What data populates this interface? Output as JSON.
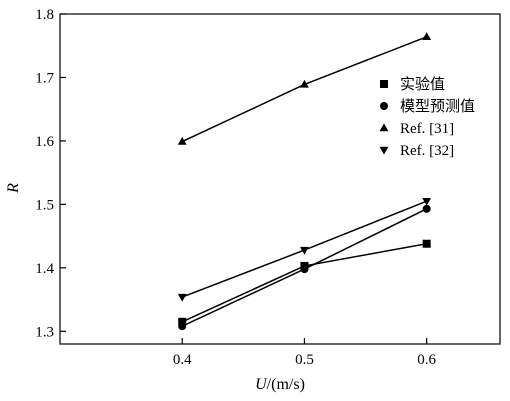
{
  "chart_data": {
    "type": "line",
    "x": [
      0.4,
      0.5,
      0.6
    ],
    "xlim": [
      0.3,
      0.66
    ],
    "ylim": [
      1.28,
      1.8
    ],
    "xticks": [
      "0.4",
      "0.5",
      "0.6"
    ],
    "yticks": [
      "1.3",
      "1.4",
      "1.5",
      "1.6",
      "1.7",
      "1.8"
    ],
    "xlabel": {
      "var": "U",
      "unit": "/(m/s)"
    },
    "ylabel": "R",
    "grid": false,
    "legend_position": "right",
    "series": [
      {
        "name": "实验值",
        "marker": "square",
        "values": [
          1.315,
          1.403,
          1.438
        ]
      },
      {
        "name": "模型预测值",
        "marker": "circle",
        "values": [
          1.308,
          1.398,
          1.493
        ]
      },
      {
        "name": "Ref. [31]",
        "marker": "triangle-up",
        "values": [
          1.599,
          1.689,
          1.764
        ]
      },
      {
        "name": "Ref. [32]",
        "marker": "triangle-down",
        "values": [
          1.354,
          1.428,
          1.505
        ]
      }
    ],
    "line_color": "#000000"
  }
}
